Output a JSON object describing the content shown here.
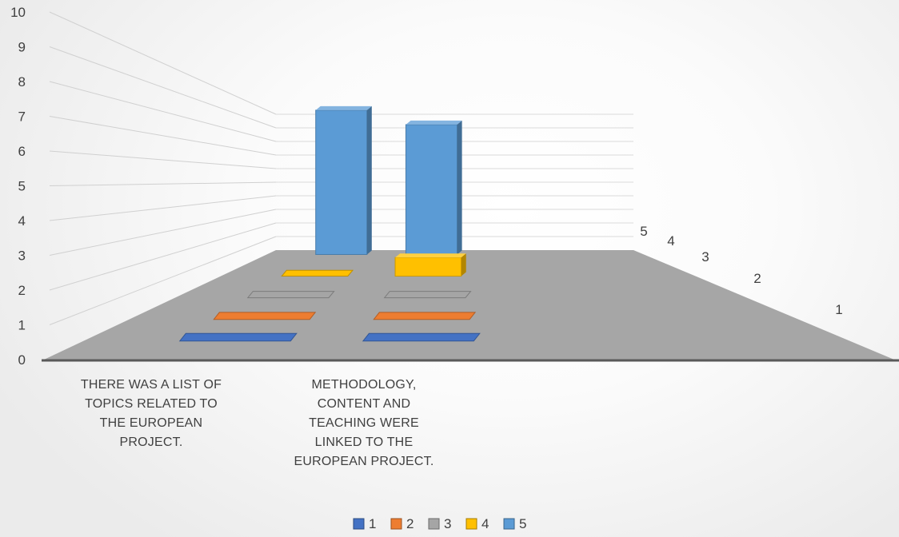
{
  "chart_data": {
    "type": "bar",
    "title": "",
    "xlabel": "",
    "ylabel": "",
    "ylim": [
      0,
      10
    ],
    "yticks": [
      "0",
      "1",
      "2",
      "3",
      "4",
      "5",
      "6",
      "7",
      "8",
      "9",
      "10"
    ],
    "depth_labels": [
      "5",
      "4",
      "3",
      "2",
      "1"
    ],
    "categories": [
      "THERE WAS A LIST OF TOPICS RELATED TO THE EUROPEAN PROJECT.",
      "METHODOLOGY, CONTENT AND TEACHING WERE LINKED TO THE EUROPEAN PROJECT."
    ],
    "category_lines": [
      [
        "THERE WAS A LIST OF",
        "TOPICS RELATED TO",
        "THE EUROPEAN",
        "PROJECT."
      ],
      [
        "METHODOLOGY,",
        "CONTENT AND",
        "TEACHING WERE",
        "LINKED TO THE",
        "EUROPEAN PROJECT."
      ]
    ],
    "series": [
      {
        "name": "1",
        "color": "#4472C4",
        "values": [
          0,
          0
        ]
      },
      {
        "name": "2",
        "color": "#ED7D31",
        "values": [
          0,
          0
        ]
      },
      {
        "name": "3",
        "color": "#A5A5A5",
        "values": [
          0,
          0
        ]
      },
      {
        "name": "4",
        "color": "#FFC000",
        "values": [
          0,
          1
        ]
      },
      {
        "name": "5",
        "color": "#5B9BD5",
        "values": [
          10,
          9
        ]
      }
    ],
    "grid": true,
    "legend": "bottom"
  }
}
